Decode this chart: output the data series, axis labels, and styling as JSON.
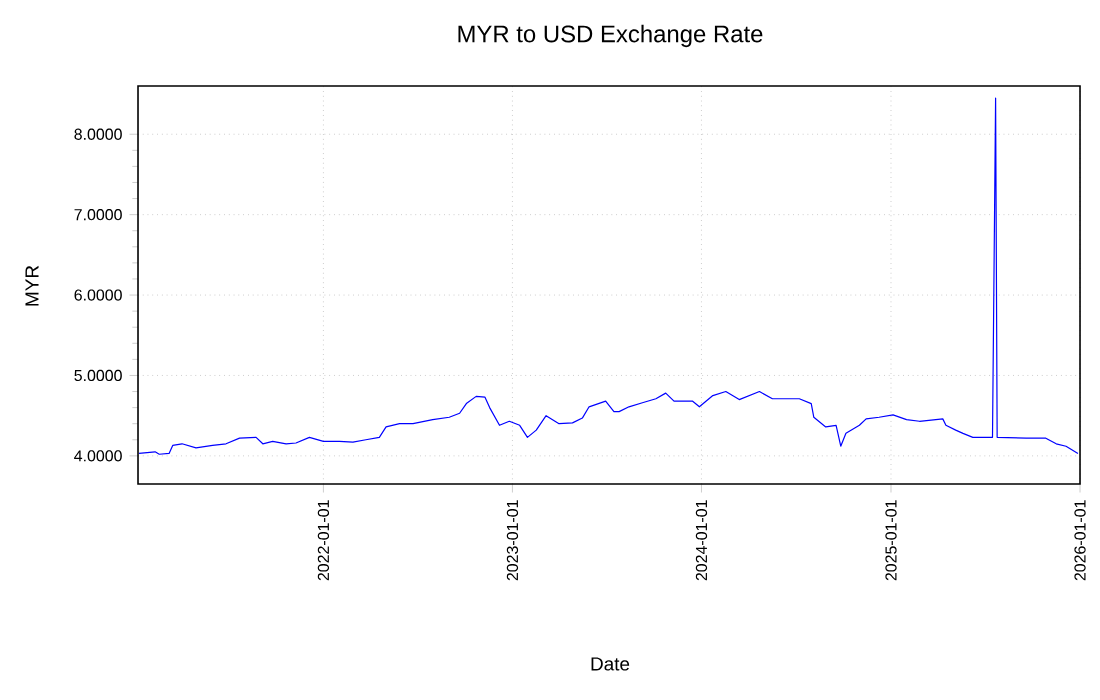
{
  "chart_data": {
    "type": "line",
    "title": "MYR to USD Exchange Rate",
    "xlabel": "Date",
    "ylabel": "MYR",
    "x": [
      "2021-01-10",
      "2021-02-10",
      "2021-02-18",
      "2021-03-09",
      "2021-03-16",
      "2021-04-03",
      "2021-04-30",
      "2021-06-01",
      "2021-06-27",
      "2021-07-23",
      "2021-08-24",
      "2021-09-06",
      "2021-09-25",
      "2021-10-21",
      "2021-11-09",
      "2021-12-05",
      "2022-01-01",
      "2022-02-01",
      "2022-02-27",
      "2022-03-24",
      "2022-04-19",
      "2022-05-02",
      "2022-05-28",
      "2022-06-23",
      "2022-07-31",
      "2022-09-01",
      "2022-09-21",
      "2022-10-04",
      "2022-10-23",
      "2022-11-09",
      "2022-11-18",
      "2022-12-07",
      "2022-12-26",
      "2023-01-15",
      "2023-01-30",
      "2023-02-16",
      "2023-03-07",
      "2023-04-01",
      "2023-04-27",
      "2023-05-16",
      "2023-05-29",
      "2023-06-30",
      "2023-07-16",
      "2023-07-26",
      "2023-08-14",
      "2023-09-09",
      "2023-10-05",
      "2023-10-24",
      "2023-11-09",
      "2023-12-15",
      "2023-12-28",
      "2024-01-23",
      "2024-02-17",
      "2024-03-14",
      "2024-04-22",
      "2024-05-17",
      "2024-07-08",
      "2024-07-31",
      "2024-08-05",
      "2024-08-28",
      "2024-09-17",
      "2024-09-26",
      "2024-10-06",
      "2024-11-01",
      "2024-11-14",
      "2024-12-09",
      "2025-01-05",
      "2025-01-31",
      "2025-02-25",
      "2025-04-11",
      "2025-04-17",
      "2025-05-06",
      "2025-05-20",
      "2025-06-08",
      "2025-07-16",
      "2025-07-22",
      "2025-07-25",
      "2025-09-19",
      "2025-10-27",
      "2025-11-16",
      "2025-12-05",
      "2025-12-28"
    ],
    "series": [
      {
        "color": "#0000ff",
        "values": [
          4.03,
          4.05,
          4.02,
          4.03,
          4.13,
          4.15,
          4.1,
          4.13,
          4.15,
          4.22,
          4.23,
          4.15,
          4.18,
          4.15,
          4.16,
          4.23,
          4.18,
          4.18,
          4.17,
          4.2,
          4.23,
          4.36,
          4.4,
          4.4,
          4.45,
          4.48,
          4.53,
          4.65,
          4.74,
          4.73,
          4.6,
          4.38,
          4.43,
          4.38,
          4.23,
          4.32,
          4.5,
          4.4,
          4.41,
          4.47,
          4.61,
          4.68,
          4.55,
          4.55,
          4.61,
          4.66,
          4.71,
          4.78,
          4.68,
          4.68,
          4.61,
          4.75,
          4.8,
          4.7,
          4.8,
          4.71,
          4.71,
          4.65,
          4.48,
          4.36,
          4.38,
          4.12,
          4.28,
          4.38,
          4.46,
          4.48,
          4.51,
          4.45,
          4.43,
          4.46,
          4.38,
          4.32,
          4.28,
          4.23,
          4.23,
          8.45,
          4.23,
          4.22,
          4.22,
          4.15,
          4.12,
          4.03
        ]
      }
    ],
    "xlim": [
      "2021-01-08",
      "2026-01-01"
    ],
    "ylim": [
      3.65,
      8.6
    ],
    "xticks": [
      "2022-01-01",
      "2023-01-01",
      "2024-01-01",
      "2025-01-01",
      "2026-01-01"
    ],
    "yticks": [
      {
        "value": 4,
        "label": "4.0000"
      },
      {
        "value": 5,
        "label": "5.0000"
      },
      {
        "value": 6,
        "label": "6.0000"
      },
      {
        "value": 7,
        "label": "7.0000"
      },
      {
        "value": 8,
        "label": "8.0000"
      }
    ],
    "grid": true
  }
}
